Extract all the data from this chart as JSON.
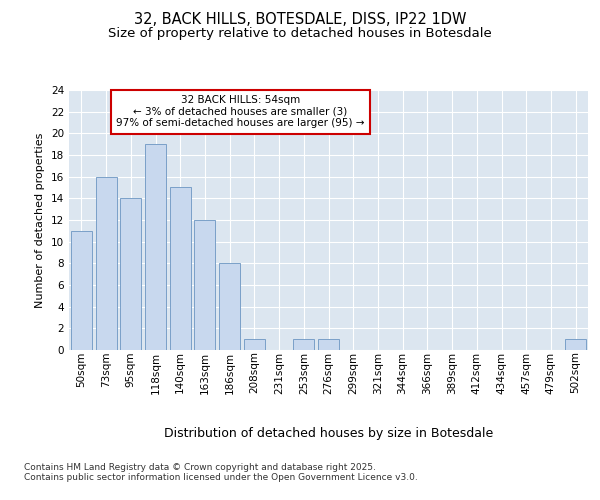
{
  "title": "32, BACK HILLS, BOTESDALE, DISS, IP22 1DW",
  "subtitle": "Size of property relative to detached houses in Botesdale",
  "xlabel": "Distribution of detached houses by size in Botesdale",
  "ylabel": "Number of detached properties",
  "categories": [
    "50sqm",
    "73sqm",
    "95sqm",
    "118sqm",
    "140sqm",
    "163sqm",
    "186sqm",
    "208sqm",
    "231sqm",
    "253sqm",
    "276sqm",
    "299sqm",
    "321sqm",
    "344sqm",
    "366sqm",
    "389sqm",
    "412sqm",
    "434sqm",
    "457sqm",
    "479sqm",
    "502sqm"
  ],
  "values": [
    11,
    16,
    14,
    19,
    15,
    12,
    8,
    1,
    0,
    1,
    1,
    0,
    0,
    0,
    0,
    0,
    0,
    0,
    0,
    0,
    1
  ],
  "bar_color": "#c8d8ee",
  "bar_edge_color": "#7aa0c8",
  "annotation_text": "32 BACK HILLS: 54sqm\n← 3% of detached houses are smaller (3)\n97% of semi-detached houses are larger (95) →",
  "annotation_box_color": "white",
  "annotation_box_edge_color": "#cc0000",
  "ylim": [
    0,
    24
  ],
  "yticks": [
    0,
    2,
    4,
    6,
    8,
    10,
    12,
    14,
    16,
    18,
    20,
    22,
    24
  ],
  "footer": "Contains HM Land Registry data © Crown copyright and database right 2025.\nContains public sector information licensed under the Open Government Licence v3.0.",
  "background_color": "#ffffff",
  "plot_bg_color": "#dce6f0",
  "grid_color": "#ffffff",
  "title_fontsize": 10.5,
  "subtitle_fontsize": 9.5,
  "xlabel_fontsize": 9,
  "ylabel_fontsize": 8,
  "tick_fontsize": 7.5,
  "annotation_fontsize": 7.5,
  "footer_fontsize": 6.5
}
